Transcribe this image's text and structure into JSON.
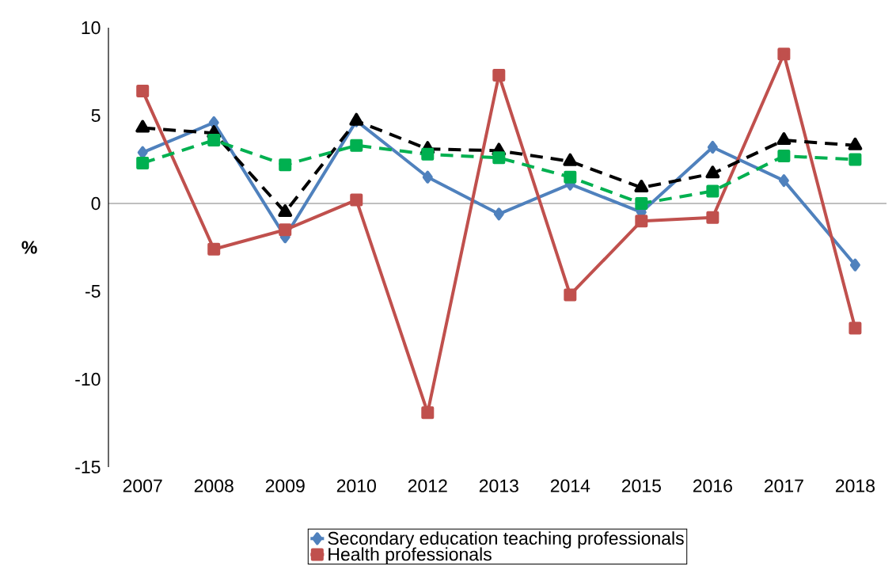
{
  "chart_data": {
    "type": "line",
    "ylabel": "%",
    "categories": [
      "2007",
      "2008",
      "2009",
      "2010",
      "2012",
      "2013",
      "2014",
      "2015",
      "2016",
      "2017",
      "2018"
    ],
    "ylim": [
      -15,
      10
    ],
    "yticks": [
      -15,
      -10,
      -5,
      0,
      5,
      10
    ],
    "legend": "bottom",
    "series": [
      {
        "name": "Secondary education teaching professionals",
        "color": "#4f81bd",
        "marker": "diamond",
        "line_style": "solid",
        "values": [
          2.9,
          4.6,
          -1.9,
          4.7,
          1.5,
          -0.6,
          1.1,
          -0.5,
          3.2,
          1.3,
          -3.5
        ]
      },
      {
        "name": "Health professionals",
        "color": "#c0504d",
        "marker": "square",
        "line_style": "solid",
        "values": [
          6.4,
          -2.6,
          -1.5,
          0.2,
          -11.9,
          7.3,
          -5.2,
          -1.0,
          -0.8,
          8.5,
          -7.1
        ]
      },
      {
        "color": "#000000",
        "marker": "triangle",
        "line_style": "dashed",
        "values": [
          4.3,
          4.0,
          -0.5,
          4.7,
          3.1,
          3.0,
          2.4,
          0.9,
          1.7,
          3.6,
          3.3
        ]
      },
      {
        "color": "#00b050",
        "marker": "square",
        "line_style": "dashed",
        "values": [
          2.3,
          3.6,
          2.2,
          3.3,
          2.8,
          2.6,
          1.5,
          0.0,
          0.7,
          2.7,
          2.5
        ]
      }
    ]
  }
}
